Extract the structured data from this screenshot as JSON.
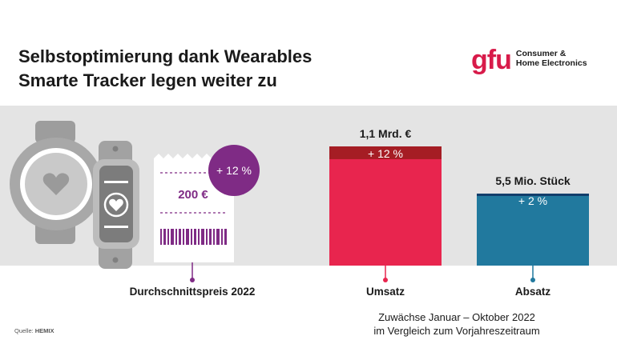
{
  "header": {
    "title_line1": "Selbstoptimierung dank Wearables",
    "title_line2": "Smarte Tracker legen weiter zu"
  },
  "logo": {
    "mark": "gfu",
    "line1": "Consumer &",
    "line2": "Home Electronics"
  },
  "price": {
    "label": "Durchschnittspreis 2022",
    "value": "200 €",
    "change": "+ 12 %"
  },
  "chart_data": {
    "type": "bar",
    "categories": [
      "Umsatz",
      "Absatz"
    ],
    "series": [
      {
        "values": [
          1.1,
          5.5
        ],
        "value_labels": [
          "1,1 Mrd. €",
          "5,5 Mio. Stück"
        ],
        "change_labels": [
          "+ 12 %",
          "+ 2 %"
        ],
        "growth_percent": [
          12,
          2
        ]
      }
    ],
    "colors": {
      "umsatz": "#e8254e",
      "umsatz_growth": "#a51d24",
      "absatz": "#21799e",
      "absatz_growth": "#123e6b",
      "price_accent": "#7f2b85"
    }
  },
  "footnote": {
    "line1": "Zuwächse Januar – Oktober 2022",
    "line2": "im Vergleich zum Vorjahreszeitraum"
  },
  "source": {
    "prefix": "Quelle:",
    "name": "HEMIX"
  }
}
